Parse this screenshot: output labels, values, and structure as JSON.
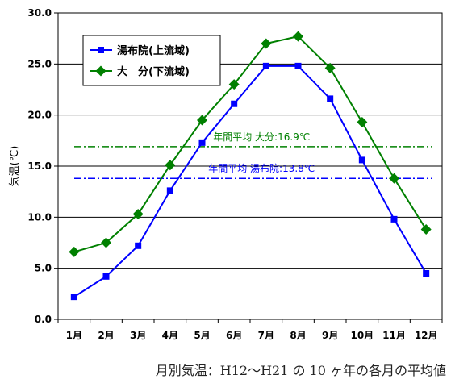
{
  "chart_data": {
    "type": "line",
    "categories": [
      "1月",
      "2月",
      "3月",
      "4月",
      "5月",
      "6月",
      "7月",
      "8月",
      "9月",
      "10月",
      "11月",
      "12月"
    ],
    "series": [
      {
        "name": "湯布院(上流域)",
        "color": "#0000ff",
        "marker": "square",
        "values": [
          2.2,
          4.2,
          7.2,
          12.6,
          17.3,
          21.1,
          24.8,
          24.8,
          21.6,
          15.6,
          9.8,
          4.5
        ]
      },
      {
        "name": "大　分(下流域)",
        "color": "#008000",
        "marker": "diamond",
        "values": [
          6.6,
          7.5,
          10.3,
          15.1,
          19.5,
          23.0,
          27.0,
          27.7,
          24.6,
          19.3,
          13.8,
          8.8
        ]
      }
    ],
    "reference_lines": [
      {
        "label": "年間平均  大分:16.9℃",
        "value": 16.9,
        "color": "#008000"
      },
      {
        "label": "年間平均  湯布院:13.8℃",
        "value": 13.8,
        "color": "#0000ff"
      }
    ],
    "ylabel": "気温(℃)",
    "ylim": [
      0,
      30
    ],
    "yticks": [
      "0.0",
      "5.0",
      "10.0",
      "15.0",
      "20.0",
      "25.0",
      "30.0"
    ],
    "grid": true,
    "legend_position": "top-left"
  },
  "caption": "月別気温：H12～H21 の 10 ヶ年の各月の平均値"
}
